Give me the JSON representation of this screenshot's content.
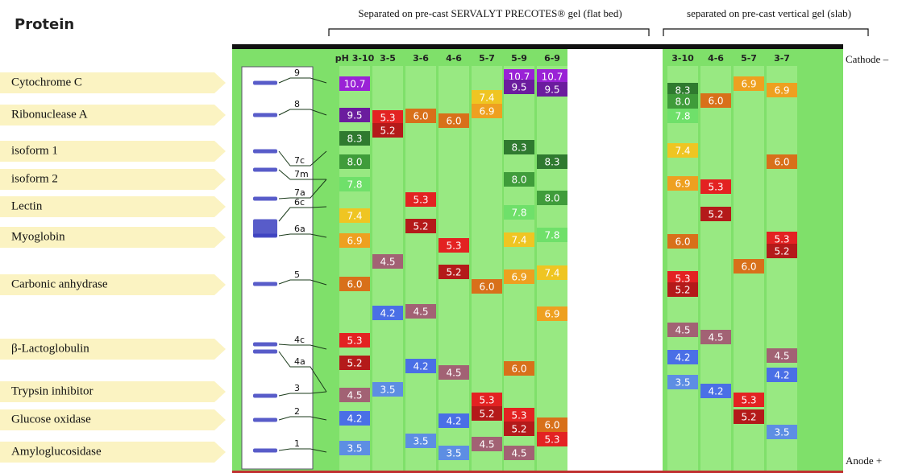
{
  "header": {
    "title": "Protein",
    "flat_bed": "Separated on pre-cast SERVALYT PRECOTES® gel (flat bed)",
    "slab": "separated on pre-cast vertical gel (slab)",
    "cathode": "Cathode –",
    "anode": "Anode +"
  },
  "proteins": [
    "Cytochrome C",
    "Ribonuclease A",
    "isoform 1",
    "isoform 2",
    "Lectin",
    "Myoglobin",
    "Carbonic anhydrase",
    "β-Lactoglobulin",
    "Trypsin inhibitor",
    "Glucose oxidase",
    "Amyloglucosidase"
  ],
  "markers": [
    "9",
    "8",
    "7c",
    "7m",
    "7a",
    "6c",
    "6a",
    "5",
    "4c",
    "4a",
    "3",
    "2",
    "1"
  ],
  "lanes": [
    {
      "label": "pH 3-10",
      "bands": [
        "10.7",
        "9.5",
        "8.3",
        "8.0",
        "7.8",
        "7.4",
        "6.9",
        "6.0",
        "5.3",
        "5.2",
        "4.5",
        "4.2",
        "3.5"
      ]
    },
    {
      "label": "3-5",
      "bands": [
        "5.3",
        "5.2",
        "4.5",
        "4.2",
        "3.5"
      ]
    },
    {
      "label": "3-6",
      "bands": [
        "6.0",
        "5.3",
        "5.2",
        "4.5",
        "4.2",
        "3.5"
      ]
    },
    {
      "label": "4-6",
      "bands": [
        "6.0",
        "5.3",
        "5.2",
        "4.5",
        "4.2",
        "3.5"
      ]
    },
    {
      "label": "5-7",
      "bands": [
        "7.4",
        "6.9",
        "6.0",
        "5.3",
        "5.2",
        "4.5"
      ]
    },
    {
      "label": "5-9",
      "bands": [
        "10.7",
        "9.5",
        "8.3",
        "8.0",
        "7.8",
        "7.4",
        "6.9",
        "6.0",
        "5.3",
        "5.2",
        "4.5"
      ]
    },
    {
      "label": "6-9",
      "bands": [
        "10.7",
        "9.5",
        "8.3",
        "8.0",
        "7.8",
        "7.4",
        "6.9",
        "6.0",
        "5.3"
      ]
    },
    {
      "label": "3-10",
      "bands": [
        "8.3",
        "8.0",
        "7.8",
        "7.4",
        "6.9",
        "6.0",
        "5.3",
        "5.2",
        "4.5",
        "4.2",
        "3.5"
      ]
    },
    {
      "label": "4-6",
      "bands": [
        "6.0",
        "5.3",
        "5.2",
        "4.5",
        "4.2"
      ]
    },
    {
      "label": "5-7",
      "bands": [
        "6.9",
        "6.0",
        "5.3",
        "5.2"
      ]
    },
    {
      "label": "3-7",
      "bands": [
        "6.9",
        "6.0",
        "5.3",
        "5.2",
        "4.5",
        "4.2",
        "3.5"
      ]
    }
  ]
}
